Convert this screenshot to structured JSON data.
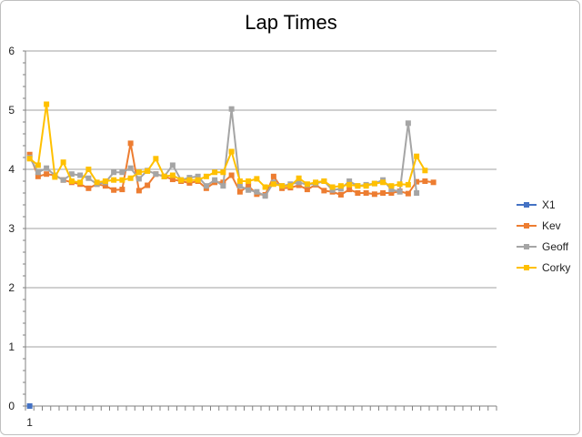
{
  "chart_data": {
    "type": "line",
    "title": "Lap Times",
    "xlabel": "",
    "ylabel": "",
    "ylim": [
      0,
      6
    ],
    "yticks": [
      0,
      1,
      2,
      3,
      4,
      5,
      6
    ],
    "x_tick_labels": [
      "1"
    ],
    "grid": true,
    "legend_position": "right",
    "series": [
      {
        "name": "X1",
        "color": "#4472c4",
        "values": [
          0
        ]
      },
      {
        "name": "Kev",
        "color": "#ed7d31",
        "values": [
          4.25,
          3.88,
          3.92,
          3.9,
          3.82,
          3.78,
          3.75,
          3.68,
          3.75,
          3.72,
          3.65,
          3.66,
          4.44,
          3.64,
          3.73,
          3.92,
          3.88,
          3.83,
          3.8,
          3.77,
          3.8,
          3.68,
          3.78,
          3.78,
          3.9,
          3.62,
          3.72,
          3.58,
          3.57,
          3.88,
          3.68,
          3.69,
          3.73,
          3.66,
          3.74,
          3.64,
          3.62,
          3.57,
          3.66,
          3.6,
          3.6,
          3.58,
          3.6,
          3.6,
          3.63,
          3.59,
          3.79,
          3.8,
          3.78
        ]
      },
      {
        "name": "Geoff",
        "color": "#a5a5a5",
        "values": [
          4.2,
          3.95,
          4.02,
          3.9,
          3.82,
          3.92,
          3.9,
          3.85,
          3.75,
          3.78,
          3.95,
          3.95,
          4.02,
          3.84,
          3.98,
          3.92,
          3.88,
          4.07,
          3.82,
          3.86,
          3.88,
          3.72,
          3.82,
          3.72,
          5.02,
          3.72,
          3.65,
          3.62,
          3.55,
          3.78,
          3.72,
          3.75,
          3.78,
          3.74,
          3.76,
          3.8,
          3.65,
          3.67,
          3.8,
          3.72,
          3.74,
          3.76,
          3.82,
          3.66,
          3.62,
          4.78,
          3.6
        ]
      },
      {
        "name": "Corky",
        "color": "#ffc000",
        "values": [
          4.18,
          4.07,
          5.1,
          3.87,
          4.12,
          3.8,
          3.78,
          4.0,
          3.78,
          3.8,
          3.82,
          3.82,
          3.85,
          3.95,
          3.97,
          4.18,
          3.88,
          3.9,
          3.82,
          3.82,
          3.82,
          3.88,
          3.95,
          3.95,
          4.3,
          3.8,
          3.8,
          3.84,
          3.7,
          3.75,
          3.72,
          3.72,
          3.85,
          3.75,
          3.78,
          3.8,
          3.7,
          3.72,
          3.74,
          3.72,
          3.72,
          3.76,
          3.78,
          3.72,
          3.75,
          3.74,
          4.22,
          3.98
        ]
      }
    ]
  }
}
